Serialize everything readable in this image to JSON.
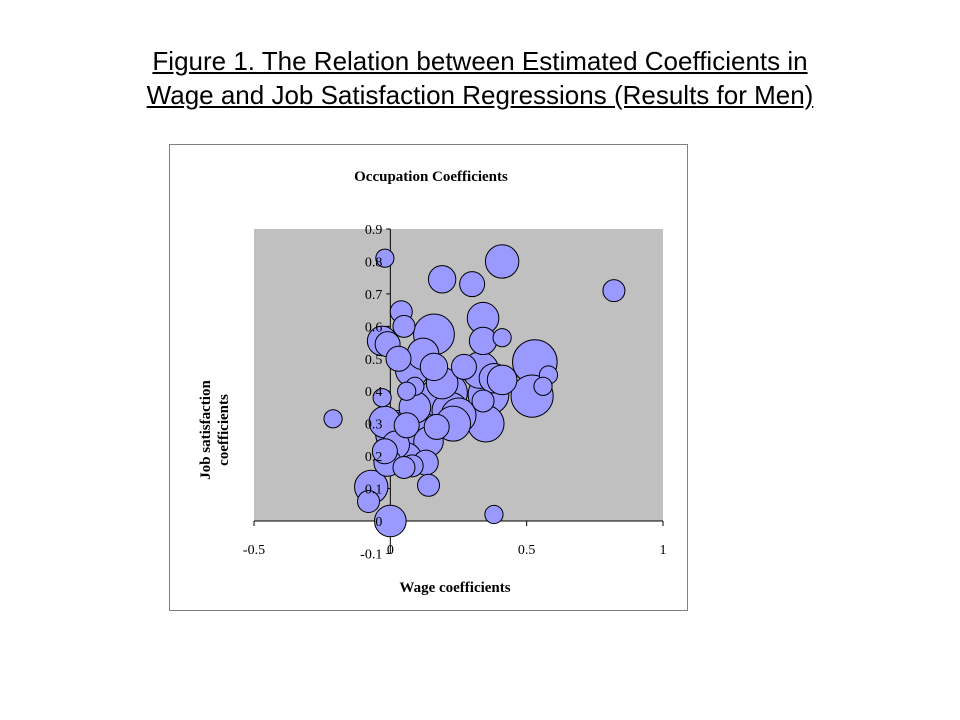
{
  "slide": {
    "title_line1": "Figure 1. The Relation between Estimated Coefficients in",
    "title_line2": "Wage and Job Satisfaction Regressions (Results for Men)"
  },
  "chart_data": {
    "type": "scatter",
    "title": "Occupation Coefficients",
    "xlabel": "Wage coefficients",
    "ylabel_line1": "Job satisfaction",
    "ylabel_line2": "coefficients",
    "xlim": [
      -0.5,
      1
    ],
    "ylim": [
      -0.1,
      0.9
    ],
    "xticks": [
      -0.5,
      0,
      0.5,
      1
    ],
    "xtick_labels": [
      "-0.5",
      "0",
      "0.5",
      "1"
    ],
    "yticks": [
      -0.1,
      0,
      0.1,
      0.2,
      0.3,
      0.4,
      0.5,
      0.6,
      0.7,
      0.8,
      0.9
    ],
    "ytick_labels": [
      "-0.1",
      "0",
      "0.1",
      "0.2",
      "0.3",
      "0.4",
      "0.5",
      "0.6",
      "0.7",
      "0.8",
      "0.9"
    ],
    "grid": false,
    "legend": "none",
    "colors": {
      "plot_bg": "#c0c0c0",
      "bubble_fill": "#9999ff",
      "bubble_stroke": "#000000"
    },
    "series": [
      {
        "points": [
          {
            "x": -0.02,
            "y": 0.81,
            "size": 1
          },
          {
            "x": 0.19,
            "y": 0.745,
            "size": 4
          },
          {
            "x": 0.41,
            "y": 0.8,
            "size": 7
          },
          {
            "x": 0.82,
            "y": 0.71,
            "size": 2
          },
          {
            "x": 0.3,
            "y": 0.73,
            "size": 3
          },
          {
            "x": 0.04,
            "y": 0.645,
            "size": 2
          },
          {
            "x": 0.34,
            "y": 0.625,
            "size": 6
          },
          {
            "x": 0.05,
            "y": 0.6,
            "size": 2
          },
          {
            "x": 0.16,
            "y": 0.575,
            "size": 12
          },
          {
            "x": 0.34,
            "y": 0.555,
            "size": 4
          },
          {
            "x": 0.41,
            "y": 0.565,
            "size": 1
          },
          {
            "x": -0.03,
            "y": 0.555,
            "size": 5
          },
          {
            "x": -0.01,
            "y": 0.545,
            "size": 3
          },
          {
            "x": 0.03,
            "y": 0.5,
            "size": 3
          },
          {
            "x": 0.12,
            "y": 0.515,
            "size": 6
          },
          {
            "x": 0.53,
            "y": 0.49,
            "size": 15
          },
          {
            "x": 0.27,
            "y": 0.475,
            "size": 3
          },
          {
            "x": 0.16,
            "y": 0.475,
            "size": 4
          },
          {
            "x": 0.08,
            "y": 0.465,
            "size": 7
          },
          {
            "x": 0.33,
            "y": 0.465,
            "size": 9
          },
          {
            "x": 0.58,
            "y": 0.45,
            "size": 1
          },
          {
            "x": 0.38,
            "y": 0.44,
            "size": 5
          },
          {
            "x": 0.41,
            "y": 0.435,
            "size": 5
          },
          {
            "x": 0.19,
            "y": 0.425,
            "size": 6
          },
          {
            "x": 0.09,
            "y": 0.415,
            "size": 1
          },
          {
            "x": 0.56,
            "y": 0.415,
            "size": 1
          },
          {
            "x": 0.06,
            "y": 0.4,
            "size": 1
          },
          {
            "x": 0.21,
            "y": 0.395,
            "size": 11
          },
          {
            "x": 0.36,
            "y": 0.39,
            "size": 12
          },
          {
            "x": 0.52,
            "y": 0.385,
            "size": 13
          },
          {
            "x": 0.17,
            "y": 0.38,
            "size": 9
          },
          {
            "x": -0.03,
            "y": 0.38,
            "size": 1
          },
          {
            "x": 0.34,
            "y": 0.37,
            "size": 2
          },
          {
            "x": 0.09,
            "y": 0.35,
            "size": 6
          },
          {
            "x": 0.22,
            "y": 0.34,
            "size": 9
          },
          {
            "x": 0.25,
            "y": 0.325,
            "size": 8
          },
          {
            "x": -0.21,
            "y": 0.315,
            "size": 1
          },
          {
            "x": -0.02,
            "y": 0.305,
            "size": 6
          },
          {
            "x": 0.23,
            "y": 0.3,
            "size": 8
          },
          {
            "x": 0.35,
            "y": 0.3,
            "size": 9
          },
          {
            "x": 0.06,
            "y": 0.295,
            "size": 3
          },
          {
            "x": 0.17,
            "y": 0.29,
            "size": 3
          },
          {
            "x": 0.07,
            "y": 0.285,
            "size": 10
          },
          {
            "x": 0.03,
            "y": 0.27,
            "size": 16
          },
          {
            "x": 0.14,
            "y": 0.245,
            "size": 5
          },
          {
            "x": 0.02,
            "y": 0.235,
            "size": 4
          },
          {
            "x": -0.02,
            "y": 0.215,
            "size": 3
          },
          {
            "x": 0.06,
            "y": 0.195,
            "size": 5
          },
          {
            "x": -0.01,
            "y": 0.18,
            "size": 4
          },
          {
            "x": 0.13,
            "y": 0.18,
            "size": 3
          },
          {
            "x": 0.08,
            "y": 0.17,
            "size": 2
          },
          {
            "x": 0.05,
            "y": 0.165,
            "size": 2
          },
          {
            "x": 0.14,
            "y": 0.11,
            "size": 2
          },
          {
            "x": -0.07,
            "y": 0.105,
            "size": 7
          },
          {
            "x": -0.08,
            "y": 0.06,
            "size": 2
          },
          {
            "x": 0.38,
            "y": 0.02,
            "size": 1
          },
          {
            "x": 0.0,
            "y": 0.0,
            "size": 6
          }
        ]
      }
    ]
  }
}
